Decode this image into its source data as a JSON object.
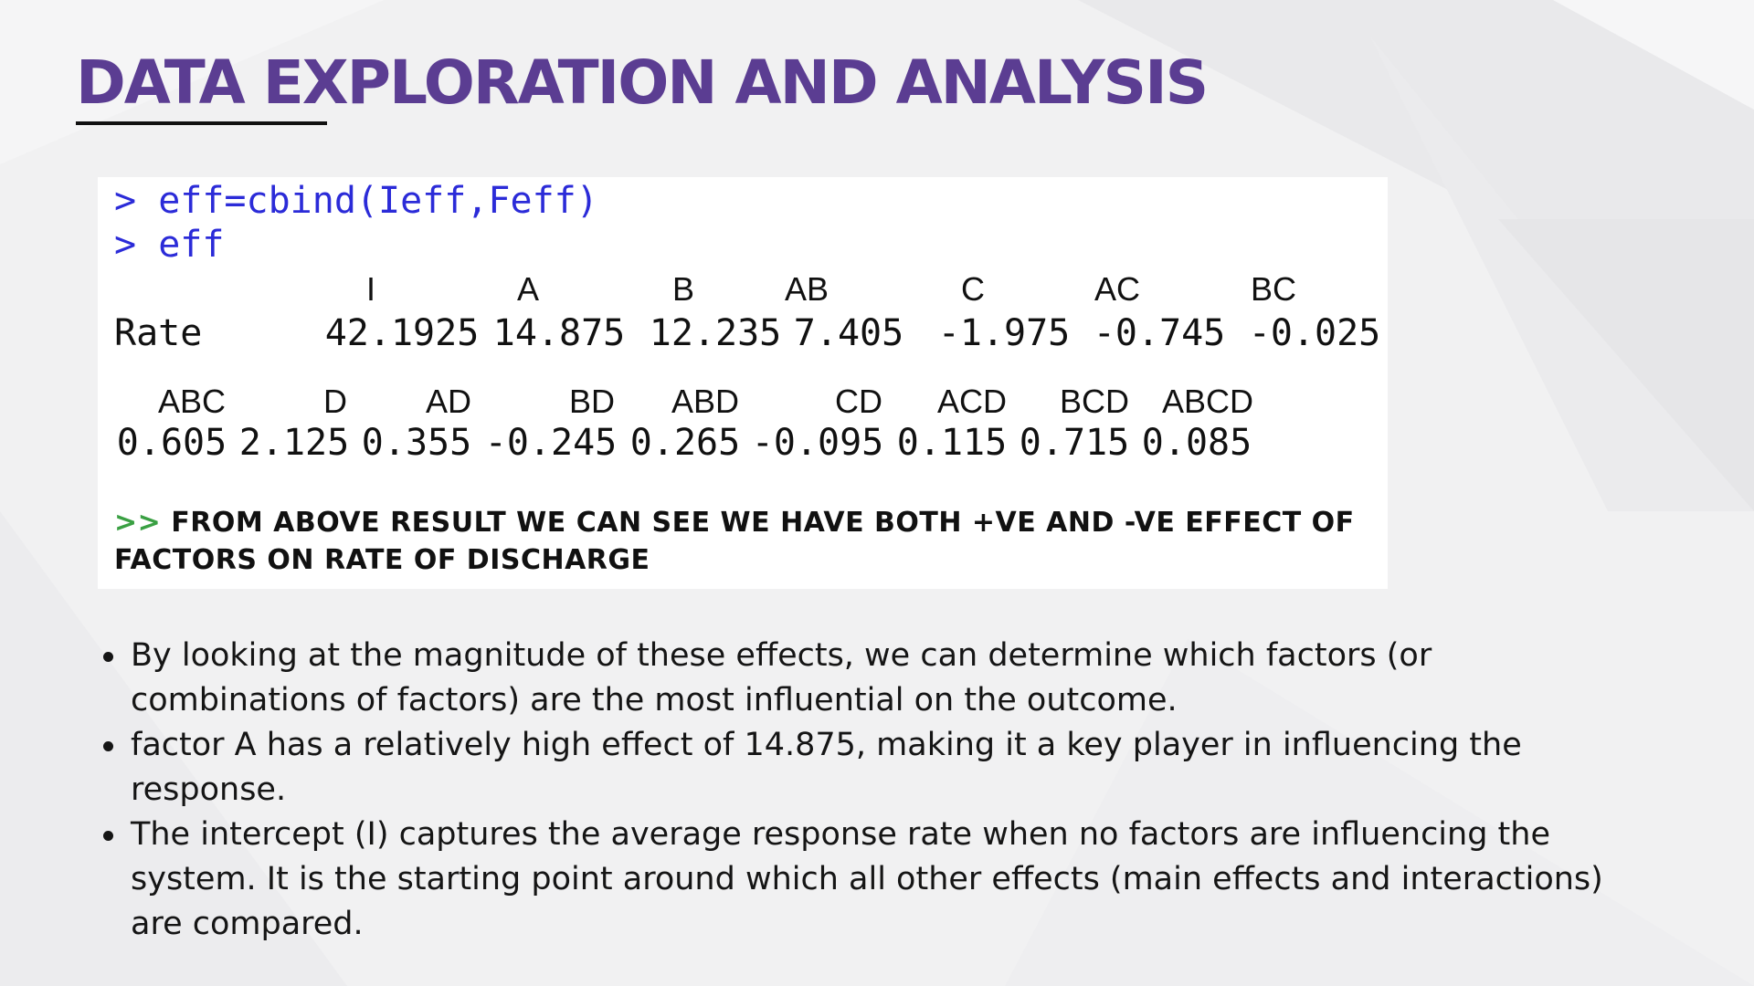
{
  "slide": {
    "title": "DATA EXPLORATION AND ANALYSIS"
  },
  "console": {
    "prompt": ">",
    "command_1": "eff=cbind(Ieff,Feff)",
    "command_2": "eff",
    "row_label": "Rate",
    "table_1": {
      "headers": [
        "I",
        "A",
        "B",
        "AB",
        "C",
        "AC",
        "BC"
      ],
      "values": [
        "42.1925",
        "14.875",
        "12.235",
        "7.405",
        "-1.975",
        "-0.745",
        "-0.025"
      ]
    },
    "table_2": {
      "headers": [
        "ABC",
        "D",
        "AD",
        "BD",
        "ABD",
        "CD",
        "ACD",
        "BCD",
        "ABCD"
      ],
      "values": [
        "0.605",
        "2.125",
        "0.355",
        "-0.245",
        "0.265",
        "-0.095",
        "0.115",
        "0.715",
        "0.085"
      ]
    },
    "note_arrow": ">>",
    "note_text": "FROM ABOVE RESULT WE CAN SEE WE HAVE BOTH +VE AND -VE EFFECT OF FACTORS ON RATE OF DISCHARGE"
  },
  "bullets": [
    "By looking at the magnitude of these effects, we can determine which factors (or combinations of factors) are the most influential on the outcome.",
    "factor A has a relatively high effect of 14.875, making it a key player in influencing the response.",
    "The intercept (I) captures the average response rate when no factors are influencing the system. It is the starting point around which all other effects (main effects and interactions) are compared."
  ],
  "colors": {
    "title": "#5b3d92",
    "command": "#2b2bd8",
    "note_arrow": "#3aa043",
    "background": "#f2f2f3"
  }
}
